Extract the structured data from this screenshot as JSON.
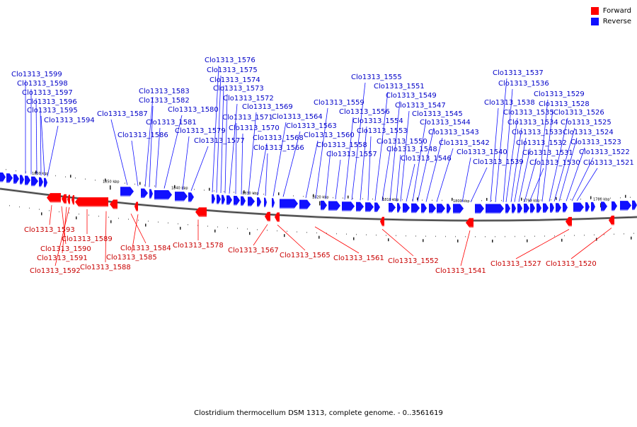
{
  "legend": {
    "forward_label": "Forward",
    "reverse_label": "Reverse",
    "forward_color": "#ff0000",
    "reverse_color": "#1010ff"
  },
  "caption": "Clostridium thermocellum DSM 1313, complete genome. - 0..3561619",
  "scale_marks": [
    "1860 kbp",
    "1850 kbp",
    "1840 kbp",
    "1830 kbp",
    "1820 kbp",
    "1810 kbp",
    "1800 kbp",
    "1790 kbp",
    "1780 kbp"
  ],
  "reverse_genes": [
    "Clo1313_1599",
    "Clo1313_1598",
    "Clo1313_1597",
    "Clo1313_1596",
    "Clo1313_1595",
    "Clo1313_1594",
    "Clo1313_1587",
    "Clo1313_1586",
    "Clo1313_1583",
    "Clo1313_1582",
    "Clo1313_1581",
    "Clo1313_1580",
    "Clo1313_1579",
    "Clo1313_1577",
    "Clo1313_1576",
    "Clo1313_1575",
    "Clo1313_1574",
    "Clo1313_1573",
    "Clo1313_1572",
    "Clo1313_1571",
    "Clo1313_1570",
    "Clo1313_1569",
    "Clo1313_1568",
    "Clo1313_1566",
    "Clo1313_1564",
    "Clo1313_1563",
    "Clo1313_1560",
    "Clo1313_1559",
    "Clo1313_1558",
    "Clo1313_1557",
    "Clo1313_1556",
    "Clo1313_1555",
    "Clo1313_1554",
    "Clo1313_1553",
    "Clo1313_1551",
    "Clo1313_1550",
    "Clo1313_1549",
    "Clo1313_1548",
    "Clo1313_1547",
    "Clo1313_1546",
    "Clo1313_1545",
    "Clo1313_1544",
    "Clo1313_1543",
    "Clo1313_1542",
    "Clo1313_1540",
    "Clo1313_1539",
    "Clo1313_1538",
    "Clo1313_1537",
    "Clo1313_1536",
    "Clo1313_1535",
    "Clo1313_1534",
    "Clo1313_1533",
    "Clo1313_1532",
    "Clo1313_1531",
    "Clo1313_1530",
    "Clo1313_1529",
    "Clo1313_1528",
    "Clo1313_1526",
    "Clo1313_1525",
    "Clo1313_1524",
    "Clo1313_1523",
    "Clo1313_1522",
    "Clo1313_1521"
  ],
  "forward_genes": [
    "Clo1313_1593",
    "Clo1313_1589",
    "Clo1313_1590",
    "Clo1313_1591",
    "Clo1313_1592",
    "Clo1313_1588",
    "Clo1313_1584",
    "Clo1313_1585",
    "Clo1313_1578",
    "Clo1313_1567",
    "Clo1313_1565",
    "Clo1313_1561",
    "Clo1313_1552",
    "Clo1313_1541",
    "Clo1313_1527",
    "Clo1313_1520"
  ]
}
